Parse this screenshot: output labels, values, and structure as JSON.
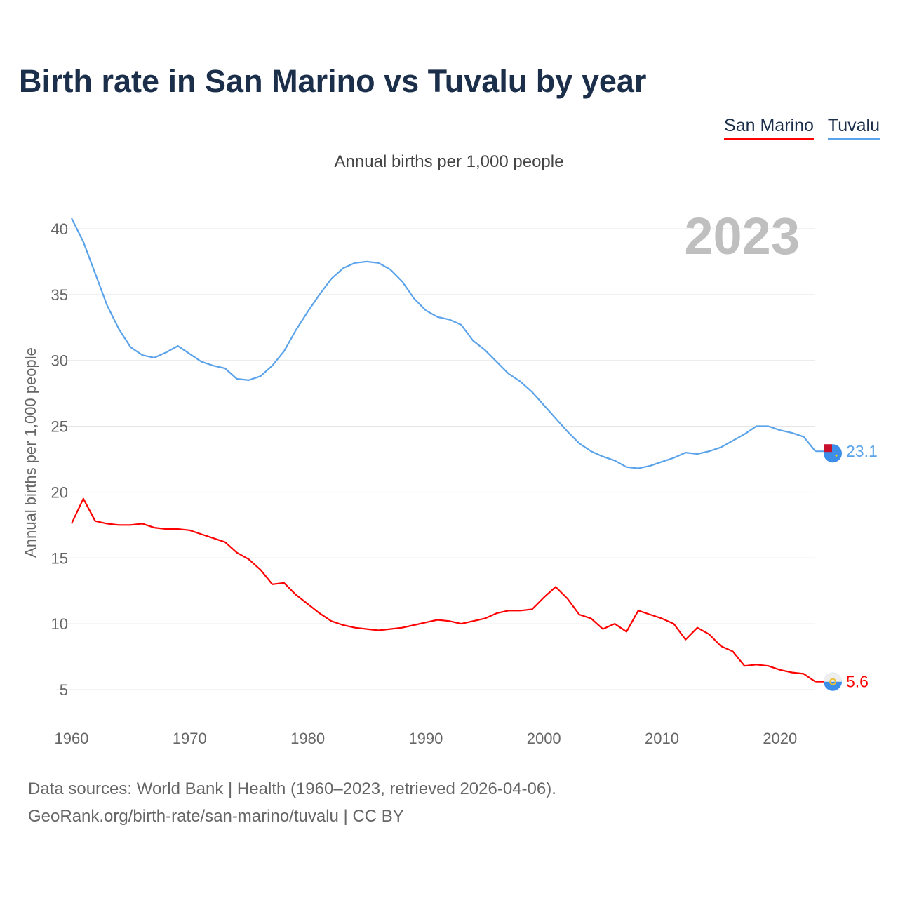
{
  "chart_data": {
    "type": "line",
    "title": "Birth rate in San Marino vs Tuvalu by year",
    "subtitle": "Annual births per 1,000 people",
    "ylabel": "Annual births per 1,000 people",
    "xlabel": "",
    "year_label": "2023",
    "xlim": [
      1960,
      2023
    ],
    "ylim": [
      3,
      42
    ],
    "grid": true,
    "legend_position": "top-right",
    "x_ticks": [
      "1960",
      "1970",
      "1980",
      "1990",
      "2000",
      "2010",
      "2020"
    ],
    "y_ticks": [
      "5",
      "10",
      "15",
      "20",
      "25",
      "30",
      "35",
      "40"
    ],
    "x": [
      1960,
      1961,
      1962,
      1963,
      1964,
      1965,
      1966,
      1967,
      1968,
      1969,
      1970,
      1971,
      1972,
      1973,
      1974,
      1975,
      1976,
      1977,
      1978,
      1979,
      1980,
      1981,
      1982,
      1983,
      1984,
      1985,
      1986,
      1987,
      1988,
      1989,
      1990,
      1991,
      1992,
      1993,
      1994,
      1995,
      1996,
      1997,
      1998,
      1999,
      2000,
      2001,
      2002,
      2003,
      2004,
      2005,
      2006,
      2007,
      2008,
      2009,
      2010,
      2011,
      2012,
      2013,
      2014,
      2015,
      2016,
      2017,
      2018,
      2019,
      2020,
      2021,
      2022,
      2023
    ],
    "series": [
      {
        "name": "San Marino",
        "color": "#ff0000",
        "end_label": "5.6",
        "values": [
          17.6,
          19.5,
          17.8,
          17.6,
          17.5,
          17.5,
          17.6,
          17.3,
          17.2,
          17.2,
          17.1,
          16.8,
          16.5,
          16.2,
          15.4,
          14.9,
          14.1,
          13.0,
          13.1,
          12.2,
          11.5,
          10.8,
          10.2,
          9.9,
          9.7,
          9.6,
          9.5,
          9.6,
          9.7,
          9.9,
          10.1,
          10.3,
          10.2,
          10.0,
          10.2,
          10.4,
          10.8,
          11.0,
          11.0,
          11.1,
          12.0,
          12.8,
          11.9,
          10.7,
          10.4,
          9.6,
          10.0,
          9.4,
          11.0,
          10.7,
          10.4,
          10.0,
          8.8,
          9.7,
          9.2,
          8.3,
          7.9,
          6.8,
          6.9,
          6.8,
          6.5,
          6.3,
          6.2,
          5.6
        ]
      },
      {
        "name": "Tuvalu",
        "color": "#5aa3ea",
        "end_label": "23.1",
        "values": [
          40.8,
          39.0,
          36.6,
          34.2,
          32.4,
          31.0,
          30.4,
          30.2,
          30.6,
          31.1,
          30.5,
          29.9,
          29.6,
          29.4,
          28.6,
          28.5,
          28.8,
          29.6,
          30.7,
          32.3,
          33.7,
          35.0,
          36.2,
          37.0,
          37.4,
          37.5,
          37.4,
          36.9,
          36.0,
          34.7,
          33.8,
          33.3,
          33.1,
          32.7,
          31.5,
          30.8,
          29.9,
          29.0,
          28.4,
          27.6,
          26.6,
          25.6,
          24.6,
          23.7,
          23.1,
          22.7,
          22.4,
          21.9,
          21.8,
          22.0,
          22.3,
          22.6,
          23.0,
          22.9,
          23.1,
          23.4,
          23.9,
          24.4,
          25.0,
          25.0,
          24.7,
          24.5,
          24.2,
          23.1
        ]
      }
    ]
  },
  "footer": {
    "line1": "Data sources: World Bank | Health (1960–2023, retrieved 2026-04-06).",
    "line2": "GeoRank.org/birth-rate/san-marino/tuvalu | CC BY"
  }
}
